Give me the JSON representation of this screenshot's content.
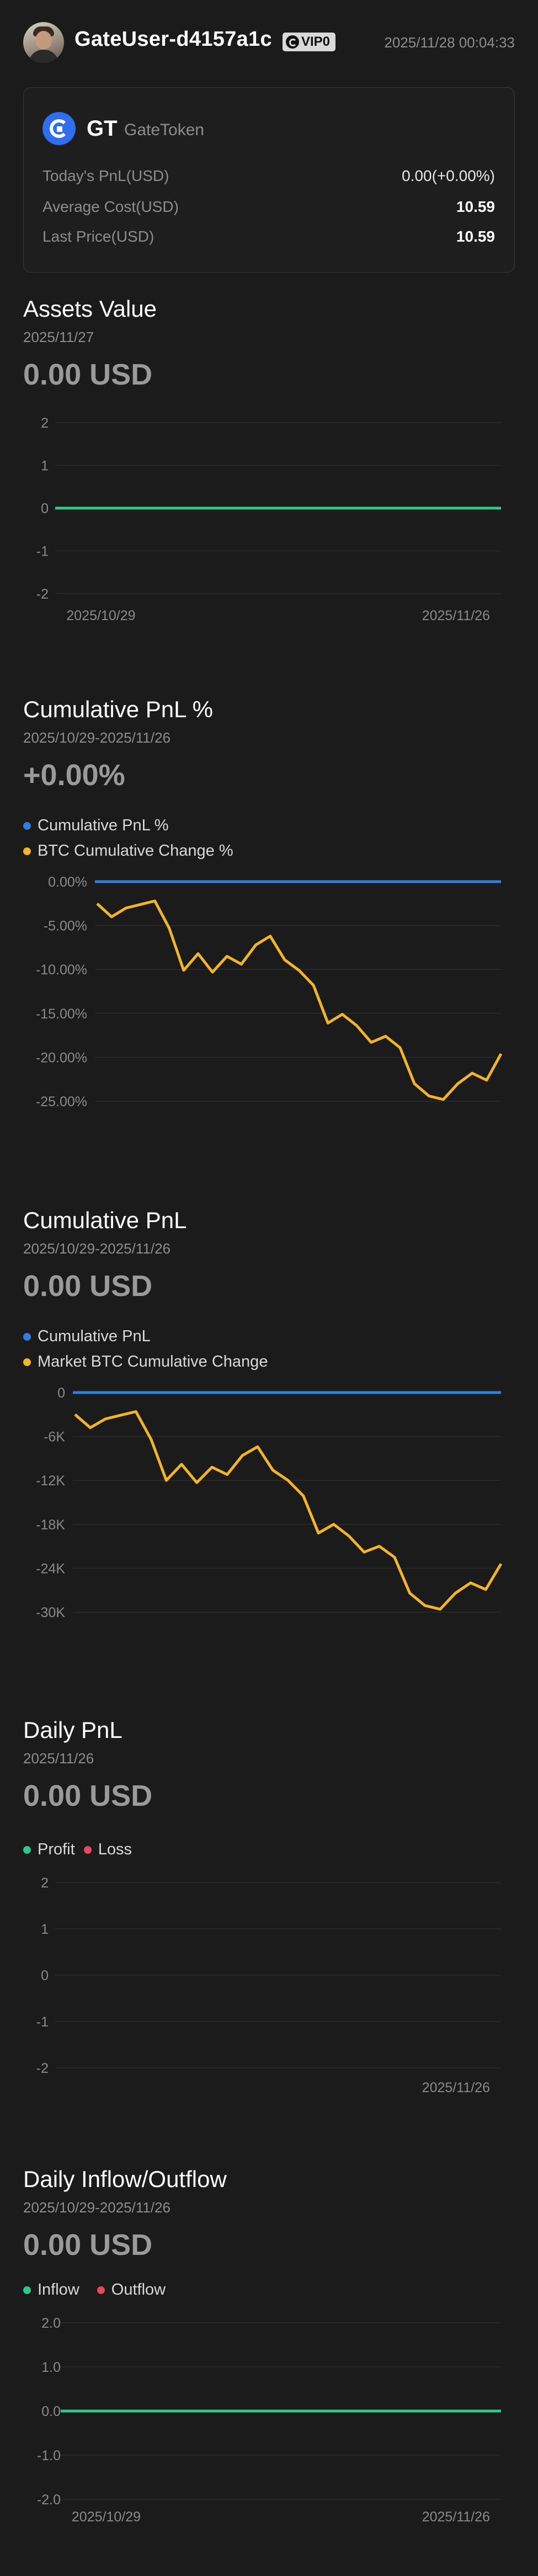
{
  "header": {
    "username": "GateUser-d4157a1c",
    "vip_label": "VIP0",
    "timestamp": "2025/11/28 00:04:33"
  },
  "token": {
    "symbol": "GT",
    "name": "GateToken",
    "rows": [
      {
        "label": "Today's PnL(USD)",
        "value": "0.00(+0.00%)"
      },
      {
        "label": "Average Cost(USD)",
        "value": "10.59"
      },
      {
        "label": "Last Price(USD)",
        "value": "10.59"
      }
    ]
  },
  "colors": {
    "green": "#2ec98a",
    "blue": "#2f7fe0",
    "orange": "#f2b42a",
    "red": "#e8485f"
  },
  "assets": {
    "title": "Assets Value",
    "date": "2025/11/27",
    "value": "0.00 USD"
  },
  "cum_pnl_pct": {
    "title": "Cumulative PnL %",
    "date": "2025/10/29-2025/11/26",
    "value": "+0.00%",
    "legend": [
      "Cumulative PnL %",
      "BTC Cumulative Change %"
    ]
  },
  "cum_pnl": {
    "title": "Cumulative PnL",
    "date": "2025/10/29-2025/11/26",
    "value": "0.00 USD",
    "legend": [
      "Cumulative PnL",
      "Market BTC Cumulative Change"
    ]
  },
  "daily_pnl": {
    "title": "Daily PnL",
    "date": "2025/11/26",
    "value": "0.00 USD",
    "legend": [
      "Profit",
      "Loss"
    ]
  },
  "inflow": {
    "title": "Daily Inflow/Outflow",
    "date": "2025/10/29-2025/11/26",
    "value": "0.00 USD",
    "legend": [
      "Inflow",
      "Outflow"
    ]
  },
  "chart_data": [
    {
      "type": "line",
      "id": "assets",
      "y_ticks": [
        "2",
        "1",
        "0",
        "-1",
        "-2"
      ],
      "ylim": [
        -2,
        2
      ],
      "x_tick_labels": [
        "2025/10/29",
        "2025/11/26"
      ],
      "series": [
        {
          "values": [
            0,
            0
          ]
        }
      ]
    },
    {
      "type": "line",
      "id": "cum_pnl_pct",
      "y_ticks": [
        "0.00%",
        "-5.00%",
        "-10.00%",
        "-15.00%",
        "-20.00%",
        "-25.00%"
      ],
      "ylim": [
        -25,
        0
      ],
      "x_tick_labels": [
        "2025/10/29",
        "2025/11/26"
      ],
      "series": [
        {
          "name": "Cumulative PnL %",
          "values": [
            0,
            0
          ]
        },
        {
          "name": "BTC Cumulative Change %",
          "values": [
            -2.5,
            -4.0,
            -3.0,
            -2.6,
            -2.2,
            -5.3,
            -10.1,
            -8.2,
            -10.3,
            -8.5,
            -9.4,
            -7.2,
            -6.2,
            -8.9,
            -10.1,
            -11.8,
            -16.1,
            -15.1,
            -16.4,
            -18.3,
            -17.6,
            -18.9,
            -23.0,
            -24.4,
            -24.8,
            -23.0,
            -21.8,
            -22.6,
            -19.6
          ]
        }
      ]
    },
    {
      "type": "line",
      "id": "cum_pnl",
      "y_ticks": [
        "0",
        "-6K",
        "-12K",
        "-18K",
        "-24K",
        "-30K"
      ],
      "ylim": [
        -30000,
        0
      ],
      "x_tick_labels": [
        "2025/10/29",
        "2025/11/26"
      ],
      "series": [
        {
          "name": "Cumulative PnL",
          "values": [
            0,
            0
          ]
        },
        {
          "name": "Market BTC Cumulative Change",
          "values": [
            -3000,
            -4800,
            -3600,
            -3100,
            -2600,
            -6400,
            -12000,
            -9800,
            -12300,
            -10200,
            -11200,
            -8600,
            -7400,
            -10600,
            -12000,
            -14100,
            -19200,
            -18000,
            -19600,
            -21800,
            -21000,
            -22500,
            -27400,
            -29100,
            -29600,
            -27400,
            -26000,
            -26900,
            -23400
          ]
        }
      ]
    },
    {
      "type": "bar",
      "id": "daily_pnl",
      "y_ticks": [
        "2",
        "1",
        "0",
        "-1",
        "-2"
      ],
      "ylim": [
        -2,
        2
      ],
      "x_tick_labels": [
        "2025/11/26"
      ],
      "series": [
        {
          "name": "Profit",
          "values": [
            0
          ]
        },
        {
          "name": "Loss",
          "values": [
            0
          ]
        }
      ]
    },
    {
      "type": "bar",
      "id": "inflow",
      "y_ticks": [
        "2.0",
        "1.0",
        "0.0",
        "-1.0",
        "-2.0"
      ],
      "ylim": [
        -2,
        2
      ],
      "x_tick_labels": [
        "2025/10/29",
        "2025/11/26"
      ],
      "series": [
        {
          "name": "Inflow",
          "values": [
            0,
            0
          ]
        },
        {
          "name": "Outflow",
          "values": [
            0,
            0
          ]
        }
      ]
    }
  ]
}
